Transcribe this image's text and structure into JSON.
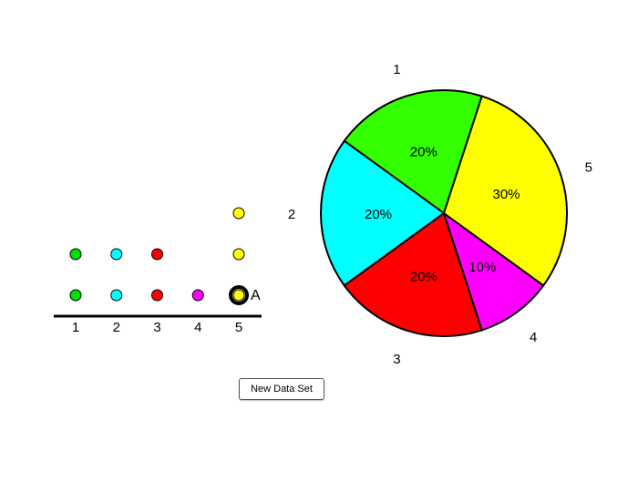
{
  "dot_plot": {
    "categories": [
      "1",
      "2",
      "3",
      "4",
      "5"
    ],
    "counts": [
      2,
      2,
      2,
      1,
      3
    ],
    "colors": [
      "#00e000",
      "#00ffff",
      "#ff0000",
      "#ff00ff",
      "#ffff00"
    ],
    "point_label": "A",
    "selected_category": "5"
  },
  "chart_data": {
    "type": "pie",
    "slices": [
      {
        "label": "1",
        "value": 20,
        "percent_label": "20%",
        "color": "#33ff00"
      },
      {
        "label": "2",
        "value": 20,
        "percent_label": "20%",
        "color": "#00ffff"
      },
      {
        "label": "3",
        "value": 20,
        "percent_label": "20%",
        "color": "#ff0000"
      },
      {
        "label": "4",
        "value": 10,
        "percent_label": "10%",
        "color": "#ff00ff"
      },
      {
        "label": "5",
        "value": 30,
        "percent_label": "30%",
        "color": "#ffff00"
      }
    ]
  },
  "button": {
    "new_data_set": "New Data Set"
  }
}
